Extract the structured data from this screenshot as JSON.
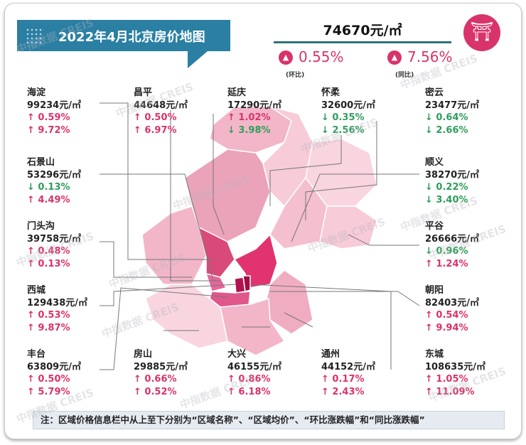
{
  "title": "2022年4月北京房价地图",
  "total": {
    "price": "74670元/㎡",
    "mom": "0.55%",
    "mom_label": "(环比)",
    "yoy": "7.56%",
    "yoy_label": "(同比)"
  },
  "colors": {
    "up": "#d9336c",
    "down": "#2e9e5b",
    "banner": "#2a7fa3"
  },
  "districts": [
    {
      "name": "海淀",
      "price": "99234元/㎡",
      "mom": "↑ 0.59%",
      "mom_dir": "up",
      "yoy": "↑ 9.72%",
      "yoy_dir": "up"
    },
    {
      "name": "昌平",
      "price": "44648元/㎡",
      "mom": "↑ 0.50%",
      "mom_dir": "up",
      "yoy": "↑ 6.97%",
      "yoy_dir": "up"
    },
    {
      "name": "延庆",
      "price": "17290元/㎡",
      "mom": "↑ 1.02%",
      "mom_dir": "up",
      "yoy": "↓ 3.98%",
      "yoy_dir": "down"
    },
    {
      "name": "怀柔",
      "price": "32600元/㎡",
      "mom": "↓ 0.35%",
      "mom_dir": "down",
      "yoy": "↓ 2.56%",
      "yoy_dir": "down"
    },
    {
      "name": "密云",
      "price": "23477元/㎡",
      "mom": "↓ 0.64%",
      "mom_dir": "down",
      "yoy": "↓ 2.66%",
      "yoy_dir": "down"
    },
    {
      "name": "石景山",
      "price": "53296元/㎡",
      "mom": "↓ 0.13%",
      "mom_dir": "down",
      "yoy": "↑ 4.49%",
      "yoy_dir": "up"
    },
    {
      "name": "顺义",
      "price": "38270元/㎡",
      "mom": "↓ 0.22%",
      "mom_dir": "down",
      "yoy": "↓ 3.40%",
      "yoy_dir": "down"
    },
    {
      "name": "门头沟",
      "price": "39758元/㎡",
      "mom": "↑ 0.48%",
      "mom_dir": "up",
      "yoy": "↑ 0.13%",
      "yoy_dir": "up"
    },
    {
      "name": "平谷",
      "price": "26666元/㎡",
      "mom": "↓ 0.96%",
      "mom_dir": "down",
      "yoy": "↑ 1.24%",
      "yoy_dir": "up"
    },
    {
      "name": "西城",
      "price": "129438元/㎡",
      "mom": "↑ 0.53%",
      "mom_dir": "up",
      "yoy": "↑ 9.87%",
      "yoy_dir": "up"
    },
    {
      "name": "朝阳",
      "price": "82403元/㎡",
      "mom": "↑ 0.54%",
      "mom_dir": "up",
      "yoy": "↑ 9.94%",
      "yoy_dir": "up"
    },
    {
      "name": "丰台",
      "price": "63809元/㎡",
      "mom": "↑ 0.50%",
      "mom_dir": "up",
      "yoy": "↑ 5.79%",
      "yoy_dir": "up"
    },
    {
      "name": "房山",
      "price": "29885元/㎡",
      "mom": "↑ 0.66%",
      "mom_dir": "up",
      "yoy": "↑ 0.52%",
      "yoy_dir": "up"
    },
    {
      "name": "大兴",
      "price": "46155元/㎡",
      "mom": "↑ 0.86%",
      "mom_dir": "up",
      "yoy": "↑ 6.18%",
      "yoy_dir": "up"
    },
    {
      "name": "通州",
      "price": "44152元/㎡",
      "mom": "↑ 0.17%",
      "mom_dir": "up",
      "yoy": "↑ 2.43%",
      "yoy_dir": "up"
    },
    {
      "name": "东城",
      "price": "108635元/㎡",
      "mom": "↑ 1.05%",
      "mom_dir": "up",
      "yoy": "↑ 11.09%",
      "yoy_dir": "up"
    }
  ],
  "note": "注：区域价格信息栏中从上至下分别为“区域名称”、“区域均价”、“环比涨跌幅”和“同比涨跌幅”",
  "watermark": "中指数据 CREIS"
}
